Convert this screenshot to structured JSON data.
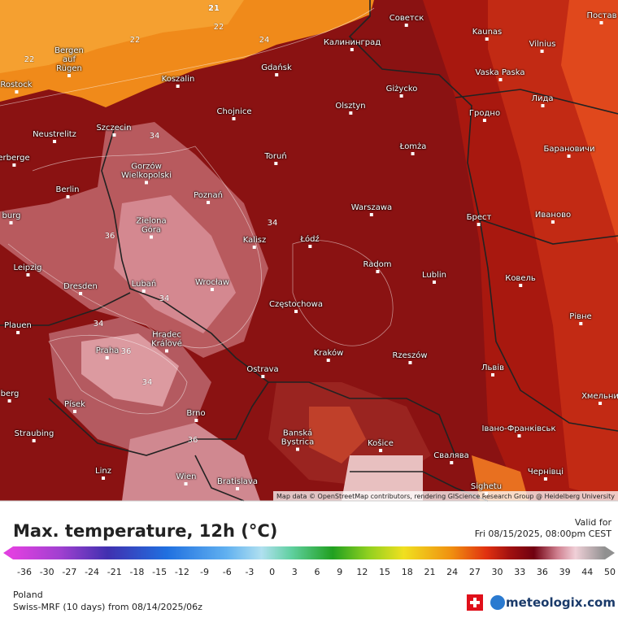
{
  "map": {
    "cities": [
      "Советск",
      "Kaunas",
      "Постав",
      "Vilnius",
      "Калининград",
      "Gdańsk",
      "Bergen auf Rügen",
      "Rostock",
      "Koszalin",
      "Vaska Paska",
      "Giżycko",
      "Лида",
      "Olsztyn",
      "Chojnice",
      "Гродно",
      "Neustrelitz",
      "Szczecin",
      "Łomża",
      "Барановичи",
      "Toruń",
      "erberge",
      "Gorzów Wielkopolski",
      "Berlin",
      "Poznań",
      "Warszawa",
      "Брест",
      "Иваново",
      "burg",
      "Zielona Góra",
      "Kalisz",
      "Łódź",
      "Radom",
      "Lublin",
      "Leipzig",
      "Dresden",
      "Lubań",
      "Wrocław",
      "Ковель",
      "Częstochowa",
      "Рівне",
      "Plauen",
      "Hradec Králové",
      "Praha",
      "Kraków",
      "Rzeszów",
      "Львів",
      "Ostrava",
      "berg",
      "Хмельни",
      "Písek",
      "Brno",
      "Straubing",
      "Banská Bystrica",
      "Košice",
      "Івано-Франківськ",
      "Свалява",
      "Linz",
      "Wien",
      "Bratislava",
      "Чернівці",
      "Sighetu"
    ],
    "contour_labels": [
      21,
      22,
      22,
      22,
      24,
      34,
      34,
      34,
      34,
      34,
      36,
      36,
      36
    ],
    "attribution": "Map data © OpenStreetMap contributors, rendering GIScience Research Group @ Heidelberg University"
  },
  "legend": {
    "title": "Max. temperature, 12h (°C)",
    "valid_label": "Valid for",
    "valid_time": "Fri 08/15/2025, 08:00pm CEST",
    "ticks": [
      -36,
      -30,
      -27,
      -24,
      -21,
      -18,
      -15,
      -12,
      -9,
      -6,
      -3,
      0,
      3,
      6,
      9,
      12,
      15,
      18,
      21,
      24,
      27,
      30,
      33,
      36,
      39,
      44,
      50
    ],
    "region": "Poland",
    "model": "Swiss-MRF (10 days) from 08/14/2025/06z",
    "brand": "meteologix.com"
  }
}
